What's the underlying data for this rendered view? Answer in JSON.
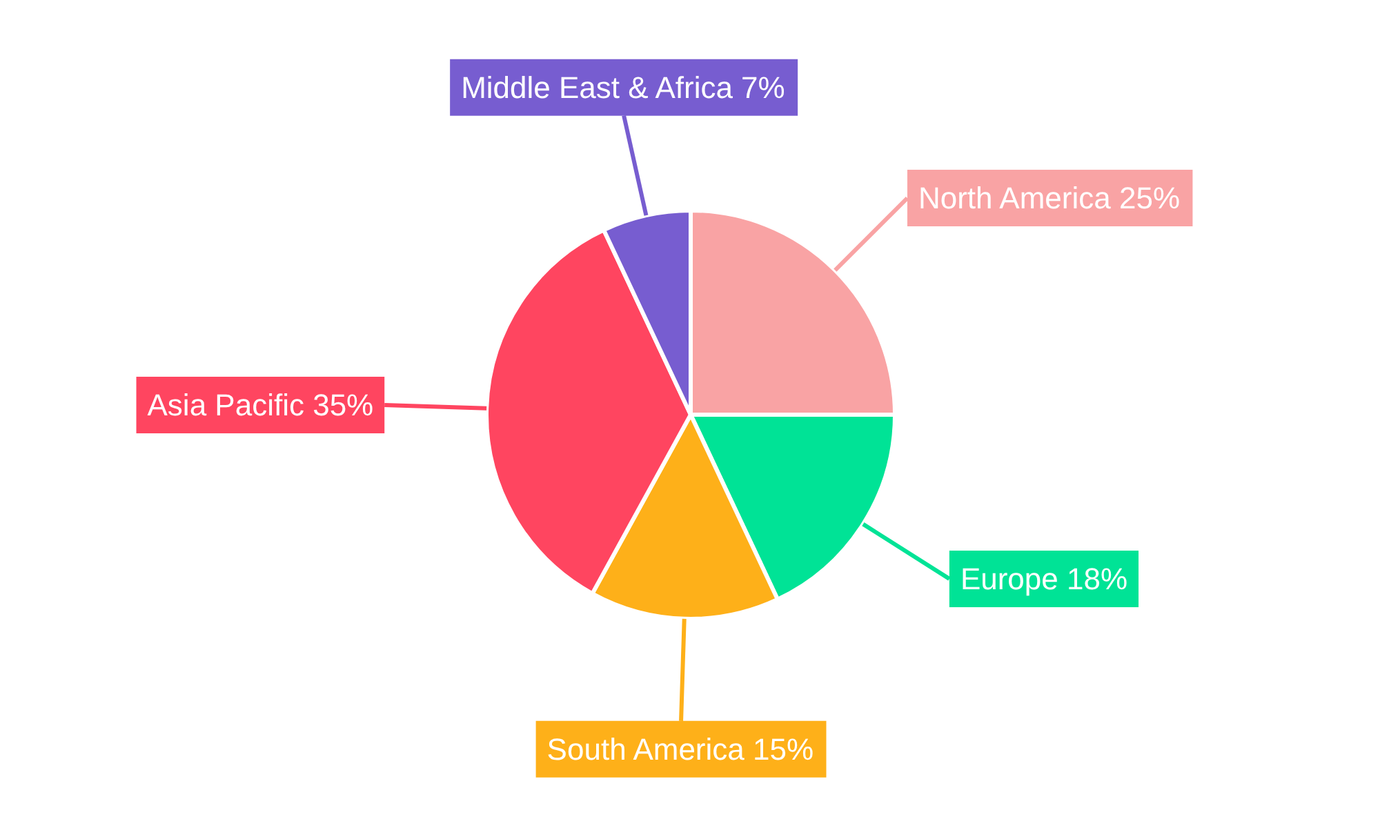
{
  "chart_data": {
    "type": "pie",
    "categories": [
      "North America",
      "Europe",
      "South America",
      "Asia Pacific",
      "Middle East & Africa"
    ],
    "values": [
      25,
      18,
      15,
      35,
      7
    ],
    "value_labels": [
      "25%",
      "18%",
      "15%",
      "35%",
      "7%"
    ],
    "colors": [
      "#f9a3a4",
      "#00e396",
      "#feb019",
      "#ff4560",
      "#775dd0"
    ]
  }
}
